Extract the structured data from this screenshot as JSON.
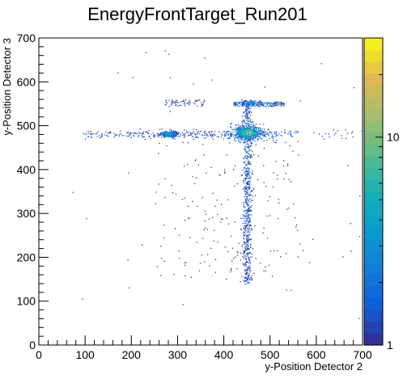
{
  "chart_data": {
    "type": "heatmap",
    "title": "EnergyFrontTarget_Run201",
    "xlabel": "y-Position Detector 2",
    "ylabel": "y-Position Detector 3",
    "xlim": [
      0,
      700
    ],
    "ylim": [
      0,
      700
    ],
    "x_ticks": [
      0,
      100,
      200,
      300,
      400,
      500,
      600,
      700
    ],
    "y_ticks": [
      0,
      100,
      200,
      300,
      400,
      500,
      600,
      700
    ],
    "grid": false,
    "colorbar": {
      "scale": "log",
      "range": [
        1,
        30
      ],
      "tick_labels": [
        "1",
        "10"
      ],
      "tick_values": [
        1,
        10
      ]
    },
    "regions": [
      {
        "name": "core",
        "x": 450,
        "y": 485,
        "peak_count": 30
      },
      {
        "name": "left-lobe",
        "x": 280,
        "y": 482,
        "peak_count": 8
      },
      {
        "name": "horizontal-band",
        "x_range": [
          100,
          560
        ],
        "y": 482
      },
      {
        "name": "vertical-band",
        "x": 450,
        "y_range": [
          140,
          560
        ]
      },
      {
        "name": "upper-cluster",
        "x_range": [
          420,
          530
        ],
        "y": 550,
        "peak_count": 5
      }
    ]
  }
}
